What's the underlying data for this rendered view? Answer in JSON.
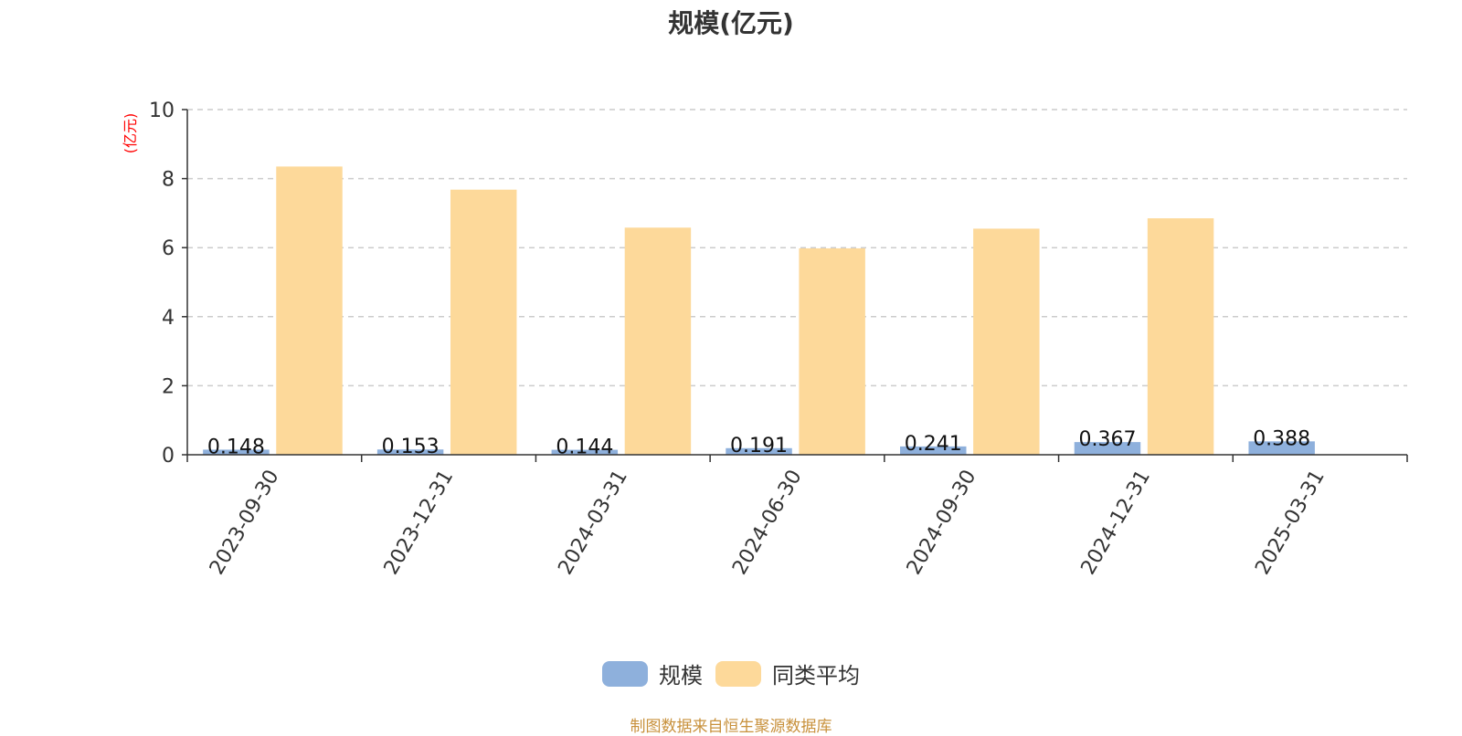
{
  "chart_data": {
    "type": "bar",
    "title": "规模(亿元)",
    "ylabel": "(亿元)",
    "xlabel": "",
    "categories": [
      "2023-09-30",
      "2023-12-31",
      "2024-03-31",
      "2024-06-30",
      "2024-09-30",
      "2024-12-31",
      "2025-03-31"
    ],
    "series": [
      {
        "name": "规模",
        "values": [
          0.148,
          0.153,
          0.144,
          0.191,
          0.241,
          0.367,
          0.388
        ],
        "color": "#8eb0dc",
        "data_labels": [
          "0.148",
          "0.153",
          "0.144",
          "0.191",
          "0.241",
          "0.367",
          "0.388"
        ]
      },
      {
        "name": "同类平均",
        "values": [
          8.35,
          7.68,
          6.58,
          5.98,
          6.55,
          6.85,
          null
        ],
        "color": "#fdd99a"
      }
    ],
    "ylim": [
      0,
      10
    ],
    "yticks": [
      0,
      2,
      4,
      6,
      8,
      10
    ],
    "grid": true,
    "legend_position": "bottom-center"
  },
  "source_note": "制图数据来自恒生聚源数据库",
  "colors": {
    "axis": "#333333",
    "grid": "#cccccc",
    "ylabel": "#ff0000",
    "source": "#c8913c"
  }
}
